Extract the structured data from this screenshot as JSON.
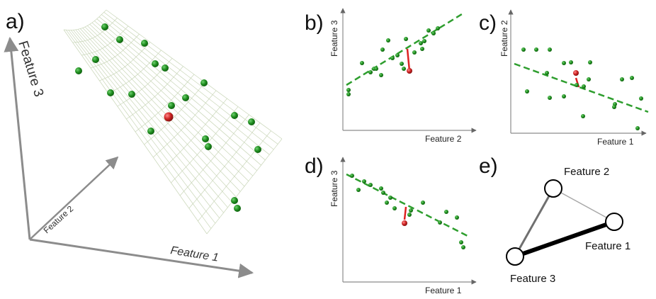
{
  "colors": {
    "point": "#1e8c1e",
    "point_dark": "#0d5c0d",
    "outlier": "#cc2222",
    "outlier_dark": "#7a0f0f",
    "fit_line": "#2e9e2e",
    "residual": "#dd2222",
    "axis": "#8c8c8c",
    "mesh": "#c9d6b8"
  },
  "panels": {
    "a": {
      "letter": "a)",
      "axis_labels": {
        "x": "Feature 1",
        "y": "Feature 2",
        "z": "Feature 3"
      }
    },
    "b": {
      "letter": "b)",
      "xlabel": "Feature 2",
      "ylabel": "Feature 3",
      "trend": "positive",
      "residual_direction": "below"
    },
    "c": {
      "letter": "c)",
      "xlabel": "Feature 1",
      "ylabel": "Feature 2",
      "trend": "negative",
      "residual_direction": "above"
    },
    "d": {
      "letter": "d)",
      "xlabel": "Feature 1",
      "ylabel": "Feature 3",
      "trend": "negative",
      "residual_direction": "below"
    },
    "e": {
      "letter": "e)",
      "nodes": [
        {
          "id": "f2",
          "label": "Feature 2"
        },
        {
          "id": "f1",
          "label": "Feature 1"
        },
        {
          "id": "f3",
          "label": "Feature 3"
        }
      ],
      "edges": [
        {
          "from": "f2",
          "to": "f1",
          "weight": "thin"
        },
        {
          "from": "f2",
          "to": "f3",
          "weight": "medium"
        },
        {
          "from": "f1",
          "to": "f3",
          "weight": "thick"
        }
      ]
    }
  }
}
